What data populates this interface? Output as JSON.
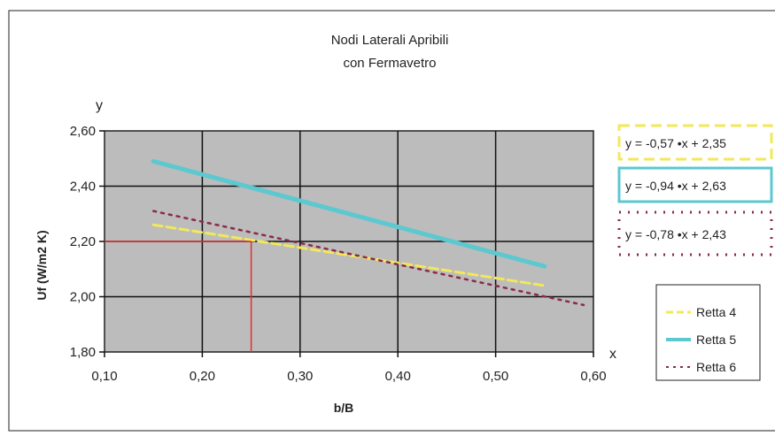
{
  "chart_data": {
    "type": "line",
    "title": "Nodi Laterali Apribili",
    "subtitle": "con Fermavetro",
    "xlabel": "b/B",
    "ylabel": "Uf (W/m2 K)",
    "x_axis_letter": "x",
    "y_axis_letter": "y",
    "xlim": [
      0.1,
      0.6
    ],
    "ylim": [
      1.8,
      2.6
    ],
    "x_ticks": [
      0.1,
      0.2,
      0.3,
      0.4,
      0.5,
      0.6
    ],
    "x_tick_labels": [
      "0,10",
      "0,20",
      "0,30",
      "0,40",
      "0,50",
      "0,60"
    ],
    "y_ticks": [
      1.8,
      2.0,
      2.2,
      2.4,
      2.6
    ],
    "y_tick_labels": [
      "1,80",
      "2,00",
      "2,20",
      "2,40",
      "2,60"
    ],
    "grid": true,
    "legend_position": "right",
    "series": [
      {
        "name": "Retta 4",
        "x": [
          0.15,
          0.55
        ],
        "y": [
          2.26,
          2.04
        ],
        "color": "#f2e85a",
        "style": "dashed",
        "equation": "y = -0,57 •x + 2,35"
      },
      {
        "name": "Retta 5",
        "x": [
          0.15,
          0.55
        ],
        "y": [
          2.49,
          2.11
        ],
        "color": "#5cc8d0",
        "style": "solid",
        "equation": "y = -0,94 •x + 2,63"
      },
      {
        "name": "Retta 6",
        "x": [
          0.15,
          0.59
        ],
        "y": [
          2.31,
          1.97
        ],
        "color": "#8b2a4a",
        "style": "dotted",
        "equation": "y = -0,78 •x + 2,43"
      }
    ],
    "annotation_point": {
      "x": 0.25,
      "y": 2.2,
      "color": "#e03030"
    }
  }
}
